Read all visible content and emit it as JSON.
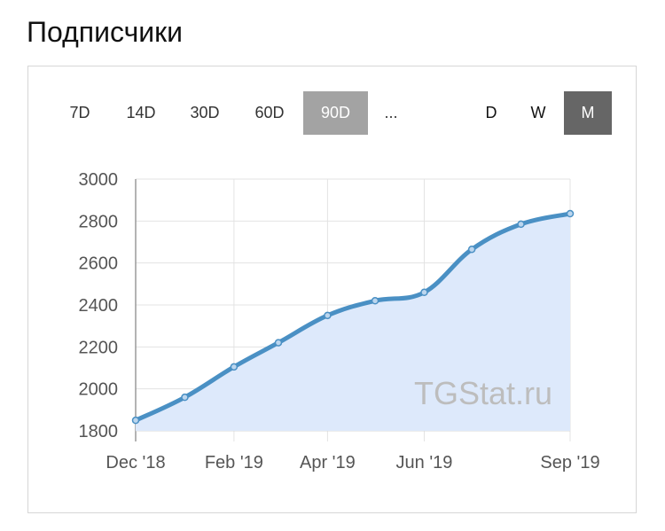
{
  "header": {
    "title": "Подписчики"
  },
  "toolbar": {
    "ranges": [
      {
        "label": "7D",
        "active": false
      },
      {
        "label": "14D",
        "active": false
      },
      {
        "label": "30D",
        "active": false
      },
      {
        "label": "60D",
        "active": false
      },
      {
        "label": "90D",
        "active": true
      },
      {
        "label": "...",
        "active": false
      }
    ],
    "periods": [
      {
        "label": "D",
        "active": false
      },
      {
        "label": "W",
        "active": false
      },
      {
        "label": "M",
        "active": true
      }
    ]
  },
  "colors": {
    "line": "#4a90c4",
    "fill": "#dde9fb",
    "active_range": "#a3a3a3",
    "active_period": "#666666"
  },
  "chart_data": {
    "type": "area",
    "watermark": "TGStat.ru",
    "x": [
      "2018-12-01",
      "2019-01-01",
      "2019-02-01",
      "2019-03-01",
      "2019-04-01",
      "2019-05-01",
      "2019-06-01",
      "2019-07-01",
      "2019-08-01",
      "2019-09-01"
    ],
    "series": [
      {
        "values": [
          1850,
          1960,
          2105,
          2220,
          2350,
          2420,
          2460,
          2665,
          2785,
          2835
        ]
      }
    ],
    "ylim": [
      1800,
      3000
    ],
    "yticks": [
      1800,
      2000,
      2200,
      2400,
      2600,
      2800,
      3000
    ],
    "xticks": [
      {
        "date": "2018-12-01",
        "label": "Dec '18"
      },
      {
        "date": "2019-02-01",
        "label": "Feb '19"
      },
      {
        "date": "2019-04-01",
        "label": "Apr '19"
      },
      {
        "date": "2019-06-01",
        "label": "Jun '19"
      },
      {
        "date": "2019-09-01",
        "label": "Sep '19"
      }
    ],
    "grid": true
  }
}
